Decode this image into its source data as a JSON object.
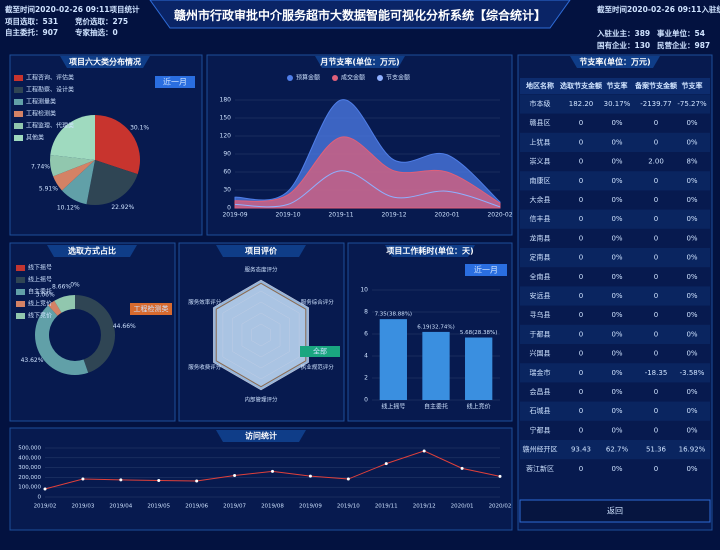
{
  "header": {
    "title": "赣州市行政审批中介服务超市大数据智能可视化分析系统【综合统计】",
    "left": [
      "截至时间2020-02-26 09:11项目统计",
      "项目选取：531",
      "竞价选取：275",
      "自主委托：907",
      "专家抽选：0"
    ],
    "right": [
      "截至时间2020-02-26 09:11入驻统计",
      "入驻业主：389",
      "事业单位：54",
      "国有企业：130",
      "民营企业：987"
    ]
  },
  "pie": {
    "title": "项目六大类分布情况",
    "button": "近一月",
    "type": "pie",
    "categories": [
      "工程咨询、评估类",
      "工程勘察、设计类",
      "工程测量类",
      "工程检测类",
      "工程监理、代理类",
      "其他类"
    ],
    "values": [
      30.1,
      22.92,
      10.12,
      5.91,
      7.74,
      23.21
    ],
    "value_labels": [
      "30.1%",
      "22.92%",
      "10.12%",
      "5.91%",
      "7.74%",
      null
    ],
    "colors": [
      "#c8342e",
      "#2f4554",
      "#61a0a8",
      "#d48265",
      "#91c7ae",
      "#9fdabf"
    ]
  },
  "monthly": {
    "title": "月节支率(单位：万元)",
    "type": "area",
    "x": [
      "2019-09",
      "2019-10",
      "2019-11",
      "2019-12",
      "2020-01",
      "2020-02"
    ],
    "series": [
      {
        "name": "预算金额",
        "color": "#4f7ee8",
        "values": [
          18,
          28,
          180,
          80,
          88.75,
          10
        ]
      },
      {
        "name": "成交金额",
        "color": "#e0607a",
        "values": [
          12,
          22,
          118,
          62,
          60,
          8
        ]
      },
      {
        "name": "节支金额",
        "color": "#8fb0ff",
        "values": [
          6,
          6,
          62,
          18,
          28,
          2
        ]
      }
    ],
    "ylim": [
      0,
      180
    ],
    "yticks": [
      0,
      30,
      60,
      90,
      120,
      150,
      180
    ]
  },
  "table": {
    "title": "节支率(单位：万元)",
    "columns": [
      "地区名称",
      "选取节支金额",
      "节支率",
      "备案节支金额",
      "节支率"
    ],
    "rows": [
      [
        "市本级",
        "182.20",
        "30.17%",
        "-2139.77",
        "-75.27%"
      ],
      [
        "赣县区",
        "0",
        "0%",
        "0",
        "0%"
      ],
      [
        "上犹县",
        "0",
        "0%",
        "0",
        "0%"
      ],
      [
        "崇义县",
        "0",
        "0%",
        "2.00",
        "8%"
      ],
      [
        "南康区",
        "0",
        "0%",
        "0",
        "0%"
      ],
      [
        "大余县",
        "0",
        "0%",
        "0",
        "0%"
      ],
      [
        "信丰县",
        "0",
        "0%",
        "0",
        "0%"
      ],
      [
        "龙南县",
        "0",
        "0%",
        "0",
        "0%"
      ],
      [
        "定南县",
        "0",
        "0%",
        "0",
        "0%"
      ],
      [
        "全南县",
        "0",
        "0%",
        "0",
        "0%"
      ],
      [
        "安远县",
        "0",
        "0%",
        "0",
        "0%"
      ],
      [
        "寻乌县",
        "0",
        "0%",
        "0",
        "0%"
      ],
      [
        "于都县",
        "0",
        "0%",
        "0",
        "0%"
      ],
      [
        "兴国县",
        "0",
        "0%",
        "0",
        "0%"
      ],
      [
        "瑞金市",
        "0",
        "0%",
        "-18.35",
        "-3.58%"
      ],
      [
        "会昌县",
        "0",
        "0%",
        "0",
        "0%"
      ],
      [
        "石城县",
        "0",
        "0%",
        "0",
        "0%"
      ],
      [
        "宁都县",
        "0",
        "0%",
        "0",
        "0%"
      ],
      [
        "赣州经开区",
        "93.43",
        "62.7%",
        "51.36",
        "16.92%"
      ],
      [
        "蓉江新区",
        "0",
        "0%",
        "0",
        "0%"
      ]
    ],
    "button": "返回"
  },
  "select": {
    "title": "选取方式占比",
    "tag": "工程检测类",
    "type": "donut",
    "categories": [
      "线下摇号",
      "线上摇号",
      "自主委托",
      "线上竞价",
      "线下竞价"
    ],
    "values": [
      0,
      44.66,
      43.62,
      3.06,
      8.66
    ],
    "value_labels": [
      "0%",
      "44.66%",
      "43.62%",
      "3.06%",
      "8.66%"
    ],
    "colors": [
      "#c23531",
      "#2f4554",
      "#61a0a8",
      "#d48265",
      "#91c7ae"
    ]
  },
  "eval": {
    "title": "项目评价",
    "tag": "全部",
    "type": "radar",
    "categories": [
      "服务态度评分",
      "服务综合评分",
      "执业规范评分",
      "内部管理评分",
      "服务收费评分",
      "服务效率评分"
    ],
    "values": [
      4.7,
      4.7,
      4.7,
      4.7,
      4.7,
      4.7
    ],
    "max": 5
  },
  "duration": {
    "title": "项目工作耗时(单位：天)",
    "button": "近一月",
    "type": "bar",
    "categories": [
      "线上摇号",
      "自主委托",
      "线上竞价"
    ],
    "values": [
      7.35,
      6.19,
      5.68
    ],
    "value_labels": [
      "7.35(38.88%)",
      "6.19(32.74%)",
      "5.68(28.38%)"
    ],
    "color": "#3a8fe0",
    "ylim": [
      0,
      10
    ],
    "yticks": [
      0,
      2,
      4,
      6,
      8,
      10
    ]
  },
  "visits": {
    "title": "访问统计",
    "type": "line",
    "color": "#e0403a",
    "x": [
      "2019/02",
      "2019/03",
      "2019/04",
      "2019/05",
      "2019/06",
      "2019/07",
      "2019/08",
      "2019/09",
      "2019/10",
      "2019/11",
      "2019/12",
      "2020/01",
      "2020/02"
    ],
    "values": [
      82000,
      184114,
      174983,
      168271,
      163606,
      219930,
      261523,
      213000,
      183133,
      340411,
      470000,
      292000,
      210000
    ],
    "ylim": [
      0,
      500000
    ],
    "yticks": [
      {
        "value": 0,
        "label": "0"
      },
      {
        "value": 100000,
        "label": "100,000"
      },
      {
        "value": 200000,
        "label": "200,000"
      },
      {
        "value": 300000,
        "label": "300,000"
      },
      {
        "value": 400000,
        "label": "400,000"
      },
      {
        "value": 500000,
        "label": "500,000"
      }
    ]
  }
}
